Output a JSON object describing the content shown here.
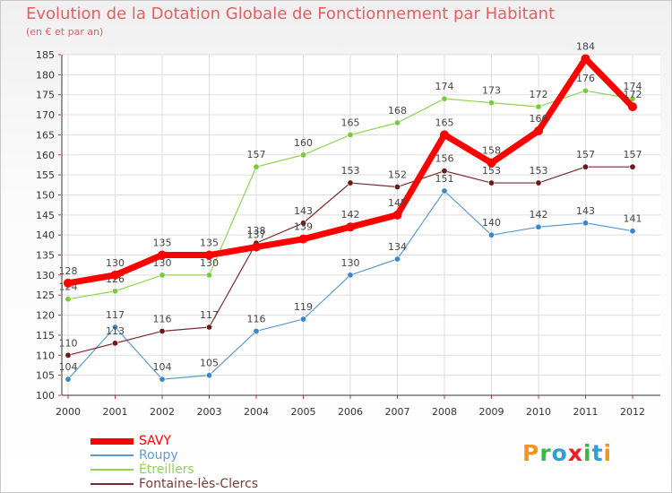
{
  "title": "Evolution de la Dotation Globale de Fonctionnement par Habitant",
  "subtitle": "(en € et par an)",
  "logo": {
    "text": "Proxiti",
    "colors": [
      "#f7941d",
      "#39b54a",
      "#2e9fd8",
      "#ed1c24",
      "#39b54a",
      "#2e9fd8",
      "#f7941d"
    ]
  },
  "chart_data": {
    "type": "line",
    "title": "Evolution de la Dotation Globale de Fonctionnement par Habitant",
    "ylabel": "(en € et par an)",
    "ylim": [
      100,
      185
    ],
    "yticks": [
      100,
      105,
      110,
      115,
      120,
      125,
      130,
      135,
      140,
      145,
      150,
      155,
      160,
      165,
      170,
      175,
      180,
      185
    ],
    "categories": [
      "2000",
      "2001",
      "2002",
      "2003",
      "2004",
      "2005",
      "2006",
      "2007",
      "2008",
      "2009",
      "2010",
      "2011",
      "2012"
    ],
    "grid": true,
    "legend": "bottom-left",
    "series": [
      {
        "name": "Roupy",
        "color": "#5b9bd5",
        "marker": "#3a86c8",
        "width": 1.2,
        "values": [
          104,
          117,
          104,
          105,
          116,
          119,
          130,
          134,
          151,
          140,
          142,
          143,
          141
        ]
      },
      {
        "name": "Étreillers",
        "color": "#8fd44f",
        "marker": "#7ac943",
        "width": 1.2,
        "values": [
          124,
          126,
          130,
          130,
          157,
          160,
          165,
          168,
          174,
          173,
          172,
          176,
          174
        ]
      },
      {
        "name": "Fontaine-lès-Clercs",
        "color": "#7a2a2a",
        "marker": "#6b1a1a",
        "width": 1.2,
        "values": [
          110,
          113,
          116,
          117,
          138,
          143,
          153,
          152,
          156,
          153,
          153,
          157,
          157
        ]
      },
      {
        "name": "SAVY",
        "color": "#ff0000",
        "marker": "#ff0000",
        "width": 7,
        "values": [
          128,
          130,
          135,
          135,
          137,
          139,
          142,
          145,
          165,
          158,
          166,
          184,
          172
        ]
      }
    ],
    "legend_order": [
      "SAVY",
      "Roupy",
      "Étreillers",
      "Fontaine-lès-Clercs"
    ]
  }
}
